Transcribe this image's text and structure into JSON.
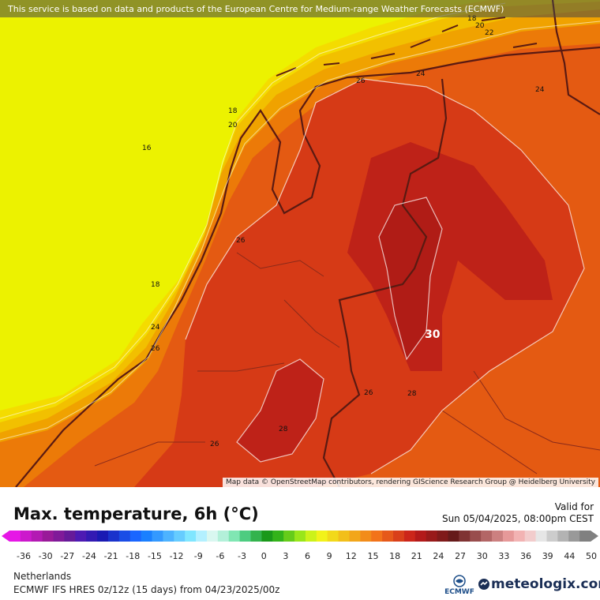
{
  "map": {
    "source_notice": "This service is based on data and products of the European Centre for Medium-range Weather Forecasts (ECMWF)",
    "attribution": "Map data © OpenStreetMap contributors, rendering GIScience Research Group @ Heidelberg University",
    "contour_labels": [
      "16",
      "18",
      "20",
      "18",
      "20",
      "22",
      "24",
      "26",
      "24",
      "26",
      "18",
      "24",
      "26",
      "30",
      "26",
      "28",
      "28",
      "26"
    ],
    "colors": {
      "t16": "#ecf200",
      "t18": "#f4dc00",
      "t20": "#f2c000",
      "t22": "#f0a200",
      "t24": "#ec7a08",
      "t26": "#e45a12",
      "t28": "#d63a16",
      "t30": "#be2218",
      "border": "#5a1a12"
    }
  },
  "header": {
    "title": "Max. temperature, 6h (°C)",
    "valid_label": "Valid for",
    "valid_value": "Sun 05/04/2025, 08:00pm CEST"
  },
  "scale": {
    "ticks": [
      "-36",
      "-30",
      "-27",
      "-24",
      "-21",
      "-18",
      "-15",
      "-12",
      "-9",
      "-6",
      "-3",
      "0",
      "3",
      "6",
      "9",
      "12",
      "15",
      "18",
      "21",
      "24",
      "27",
      "30",
      "33",
      "36",
      "39",
      "44",
      "50"
    ],
    "colors": [
      "#e617e6",
      "#cc19cc",
      "#b31ab3",
      "#991a99",
      "#801a99",
      "#661a99",
      "#4d1ab3",
      "#331ab3",
      "#1a1ab3",
      "#1a33cc",
      "#1a4de6",
      "#1a66ff",
      "#1a80ff",
      "#3399ff",
      "#4db3ff",
      "#66ccff",
      "#80e6ff",
      "#b3f0ff",
      "#d9f7f0",
      "#b3f0d9",
      "#80e6b3",
      "#4dcc80",
      "#33b34d",
      "#1a991a",
      "#33b31a",
      "#66cc1a",
      "#99e61a",
      "#ccf21a",
      "#f2f21a",
      "#f2d91a",
      "#f2bf1a",
      "#f2a61a",
      "#f28c1a",
      "#f2731a",
      "#e6591a",
      "#d9401a",
      "#cc261a",
      "#b31a1a",
      "#991a1a",
      "#801a1a",
      "#661a1a",
      "#803333",
      "#994d4d",
      "#b36666",
      "#cc8080",
      "#e69999",
      "#f2b3b3",
      "#f2cccc",
      "#e6e6e6",
      "#cccccc",
      "#b3b3b3",
      "#999999",
      "#808080"
    ]
  },
  "footer": {
    "region": "Netherlands",
    "model": "ECMWF IFS HRES 0z/12z (15 days) from 04/23/2025/00z",
    "ecmwf_logo_text": "ECMWF",
    "brand": "meteologix.com"
  }
}
